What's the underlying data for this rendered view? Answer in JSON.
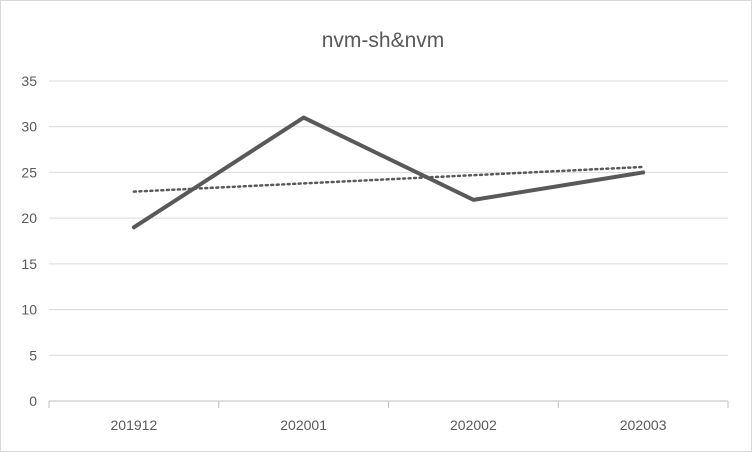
{
  "chart_data": {
    "type": "line",
    "title": "nvm-sh&nvm",
    "categories": [
      "201912",
      "202001",
      "202002",
      "202003"
    ],
    "series": [
      {
        "values": [
          19,
          31,
          22,
          25
        ],
        "color": "#595959",
        "style": "solid"
      }
    ],
    "trendline": {
      "type": "linear",
      "values": [
        22.9,
        23.8,
        24.7,
        25.6
      ],
      "color": "#595959",
      "style": "dotted"
    },
    "ylim": [
      0,
      35
    ],
    "yticks": [
      "0",
      "5",
      "10",
      "15",
      "20",
      "25",
      "30",
      "35"
    ],
    "grid": true,
    "legend": "none",
    "xlabel": "",
    "ylabel": ""
  }
}
